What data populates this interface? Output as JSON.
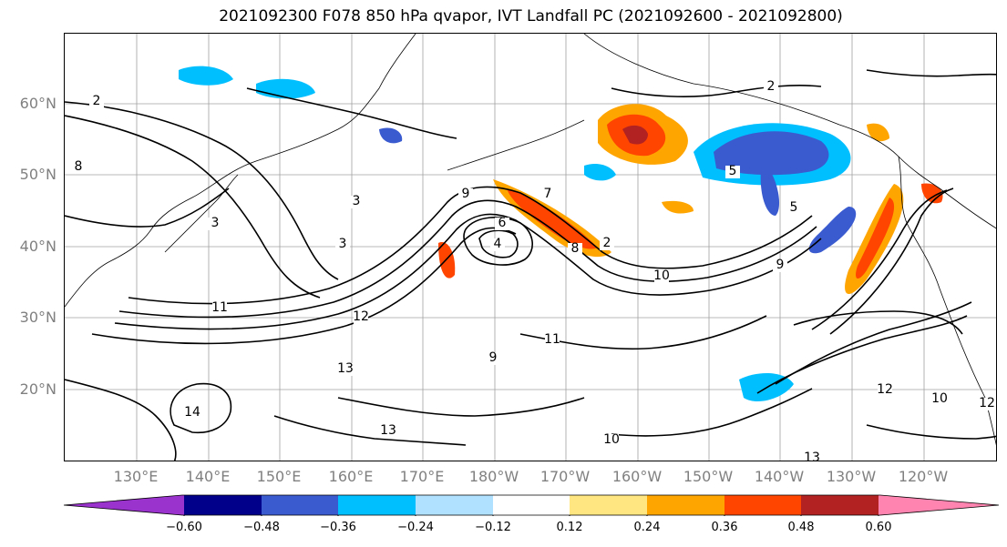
{
  "title": "2021092300 F078 850 hPa qvapor, IVT Landfall PC (2021092600 - 2021092800)",
  "lat_labels": [
    "60°N",
    "50°N",
    "40°N",
    "30°N",
    "20°N"
  ],
  "lon_labels": [
    "130°E",
    "140°E",
    "150°E",
    "160°E",
    "170°E",
    "180°W",
    "170°W",
    "160°W",
    "150°W",
    "140°W",
    "130°W",
    "120°W"
  ],
  "colorbar": {
    "ticks": [
      "−0.60",
      "−0.48",
      "−0.36",
      "−0.24",
      "−0.12",
      "0.12",
      "0.24",
      "0.36",
      "0.48",
      "0.60"
    ],
    "colors": [
      "#9a32cd",
      "#00008b",
      "#3a5bd0",
      "#00bfff",
      "#b0e2ff",
      "#ffffff",
      "#ffe680",
      "#ffa500",
      "#ff4500",
      "#b22222",
      "#ff85b0"
    ],
    "extend": "both"
  },
  "contour_labels": [
    "2",
    "2",
    "2",
    "3",
    "3",
    "3",
    "4",
    "5",
    "5",
    "6",
    "7",
    "8",
    "8",
    "9",
    "9",
    "9",
    "10",
    "10",
    "10",
    "11",
    "11",
    "12",
    "12",
    "12",
    "13",
    "13",
    "13",
    "14"
  ],
  "colors": {
    "contour": "#000000",
    "grid": "#a0a0a0",
    "tick_label": "#808080"
  }
}
